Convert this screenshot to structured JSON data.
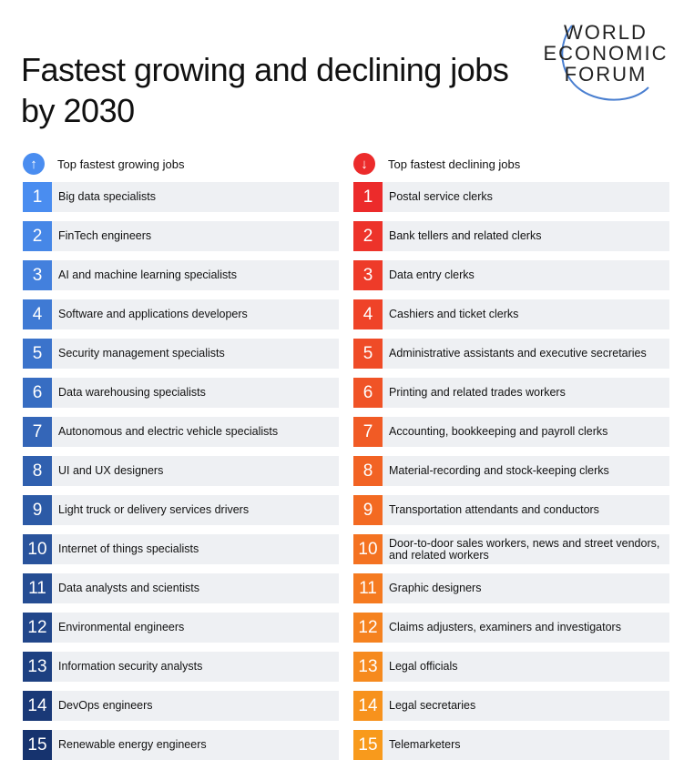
{
  "title": "Fastest growing and declining jobs by 2030",
  "logo": {
    "line1": "WORLD",
    "line2": "ECONOMIC",
    "line3": "FORUM"
  },
  "growing": {
    "heading": "Top fastest growing jobs",
    "icon": "arrow-up-icon",
    "color_start": "#4a8df0",
    "color_end": "#16336e",
    "items": [
      {
        "rank": "1",
        "label": "Big data specialists"
      },
      {
        "rank": "2",
        "label": "FinTech engineers"
      },
      {
        "rank": "3",
        "label": "AI and machine learning specialists"
      },
      {
        "rank": "4",
        "label": "Software and applications developers"
      },
      {
        "rank": "5",
        "label": "Security management specialists"
      },
      {
        "rank": "6",
        "label": "Data warehousing specialists"
      },
      {
        "rank": "7",
        "label": "Autonomous and electric vehicle specialists"
      },
      {
        "rank": "8",
        "label": "UI and UX designers"
      },
      {
        "rank": "9",
        "label": "Light truck or delivery services drivers"
      },
      {
        "rank": "10",
        "label": "Internet of things specialists"
      },
      {
        "rank": "11",
        "label": "Data analysts and scientists"
      },
      {
        "rank": "12",
        "label": "Environmental engineers"
      },
      {
        "rank": "13",
        "label": "Information security analysts"
      },
      {
        "rank": "14",
        "label": "DevOps engineers"
      },
      {
        "rank": "15",
        "label": "Renewable energy engineers"
      }
    ]
  },
  "declining": {
    "heading": "Top fastest declining jobs",
    "icon": "arrow-down-icon",
    "color_start": "#ec2b2b",
    "color_end": "#f89a1c",
    "items": [
      {
        "rank": "1",
        "label": "Postal service clerks"
      },
      {
        "rank": "2",
        "label": "Bank tellers and related clerks"
      },
      {
        "rank": "3",
        "label": "Data entry clerks"
      },
      {
        "rank": "4",
        "label": "Cashiers and ticket clerks"
      },
      {
        "rank": "5",
        "label": "Administrative assistants and executive secretaries"
      },
      {
        "rank": "6",
        "label": "Printing and related trades workers"
      },
      {
        "rank": "7",
        "label": "Accounting, bookkeeping and payroll clerks"
      },
      {
        "rank": "8",
        "label": "Material-recording and stock-keeping clerks"
      },
      {
        "rank": "9",
        "label": "Transportation attendants and conductors"
      },
      {
        "rank": "10",
        "label": "Door-to-door sales workers, news and street vendors, and related workers"
      },
      {
        "rank": "11",
        "label": "Graphic designers"
      },
      {
        "rank": "12",
        "label": "Claims adjusters, examiners and investigators"
      },
      {
        "rank": "13",
        "label": "Legal officials"
      },
      {
        "rank": "14",
        "label": "Legal secretaries"
      },
      {
        "rank": "15",
        "label": "Telemarketers"
      }
    ]
  }
}
